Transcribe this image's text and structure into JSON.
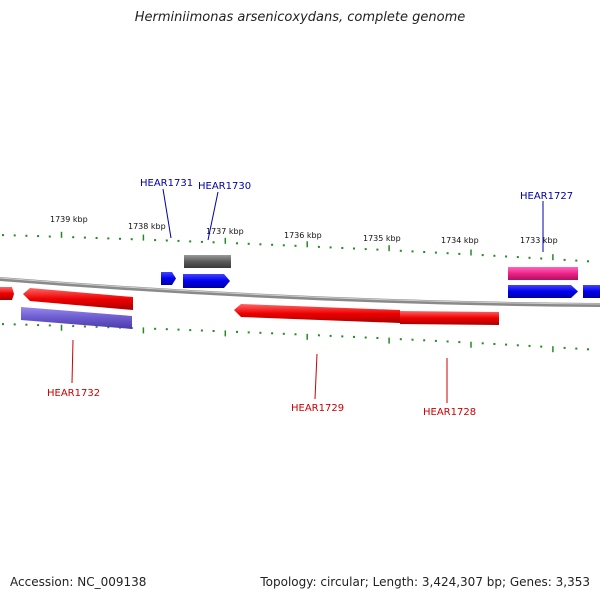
{
  "title": "Herminiimonas arsenicoxydans, complete genome",
  "footer": {
    "accession": "Accession: NC_009138",
    "topology": "Topology: circular; Length: 3,424,307 bp; Genes: 3,353"
  },
  "ticks": [
    "1739 kbp",
    "1738 kbp",
    "1737 kbp",
    "1736 kbp",
    "1735 kbp",
    "1734 kbp",
    "1733 kbp"
  ],
  "gene_labels": {
    "hear1731": "HEAR1731",
    "hear1730": "HEAR1730",
    "hear1727": "HEAR1727",
    "hear1732": "HEAR1732",
    "hear1729": "HEAR1729",
    "hear1728": "HEAR1728"
  },
  "colors": {
    "forward_label": "#0000aa",
    "reverse_label": "#cc0000",
    "tick": "#228B22",
    "backbone": "#8a8a8a",
    "red_gene": "#ee0000",
    "blue_gene": "#0000ee",
    "pink_gene": "#ee2288",
    "gray_gene": "#5a5a5a",
    "purple_gene": "#6a5acd"
  }
}
